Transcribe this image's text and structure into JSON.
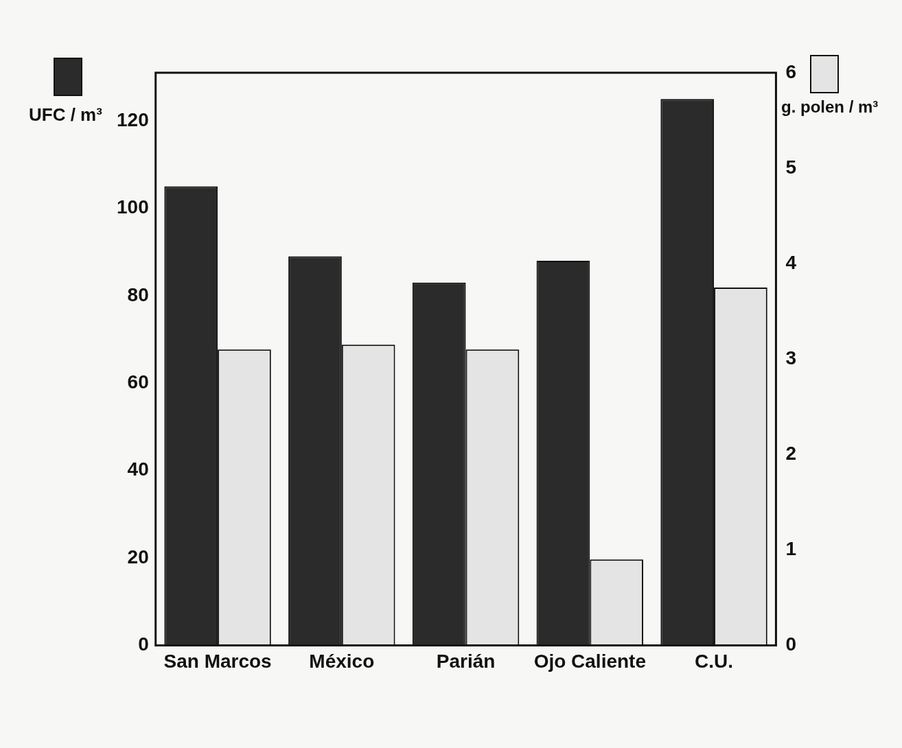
{
  "chart_data": {
    "type": "bar",
    "ylabel": "UFC / m³",
    "y2label": "g. polen / m³",
    "categories": [
      "San Marcos",
      "México",
      "Parián",
      "Ojo Caliente",
      "C.U."
    ],
    "series": [
      {
        "color": "#2b2b2b",
        "values": [
          105,
          89,
          83,
          88,
          125
        ]
      },
      {
        "color": "#e4e4e4",
        "axis": "y2",
        "values": [
          3.1,
          3.15,
          3.1,
          0.9,
          3.75
        ]
      }
    ],
    "ylim": [
      0,
      131
    ],
    "yticks": [
      0,
      20,
      40,
      60,
      80,
      100,
      120
    ],
    "y2lim": [
      0,
      6
    ],
    "y2ticks": [
      0,
      1,
      2,
      3,
      4,
      5,
      6
    ],
    "grid": false,
    "legend": false
  }
}
